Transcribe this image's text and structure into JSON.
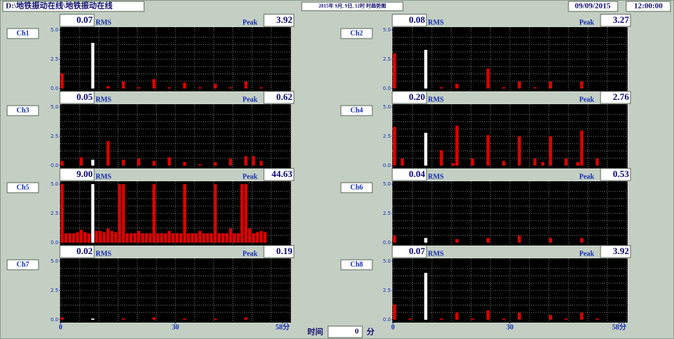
{
  "header": {
    "path": "D:\\地铁振动在线\\地铁振动在线",
    "trend": "2015年  9月, 9日, 12时  时趋势图",
    "date": "09/09/2015",
    "time": "12:00:00"
  },
  "footer": {
    "label": "时间",
    "value": "0",
    "unit": "分"
  },
  "chart_data": [
    {
      "type": "bar",
      "title": "Ch1",
      "rms": "0.07",
      "rms_label": "RMS",
      "peak": "3.92",
      "peak_label": "Peak",
      "x": [
        0,
        8,
        12,
        16,
        20,
        24,
        28,
        32,
        36,
        40,
        44,
        48,
        52
      ],
      "values": [
        1.3,
        3.9,
        0.2,
        0.6,
        0.1,
        0.8,
        0.1,
        0.5,
        0.1,
        0.4,
        0.1,
        0.6,
        0.1
      ],
      "color": "#e00000",
      "highlight_x": 8,
      "highlight_color": "#ffffff",
      "ylim": [
        0,
        5
      ],
      "yticks": [
        {
          "value": 0,
          "label": "0.0"
        },
        {
          "value": 2.5,
          "label": "2.5"
        },
        {
          "value": 5,
          "label": "5.0"
        }
      ],
      "xlim": [
        0,
        60
      ],
      "grid_x": [
        0,
        5,
        10,
        15,
        20,
        25,
        30,
        35,
        40,
        45,
        50,
        55,
        60
      ],
      "grid_y": [
        0.625,
        1.25,
        1.875,
        2.5,
        3.125,
        3.75,
        4.375
      ]
    },
    {
      "type": "bar",
      "title": "Ch2",
      "rms": "0.08",
      "rms_label": "RMS",
      "peak": "3.27",
      "peak_label": "Peak",
      "x": [
        0,
        8,
        12,
        16,
        24,
        28,
        32,
        36,
        40,
        48
      ],
      "values": [
        3.0,
        3.3,
        0.1,
        0.4,
        1.7,
        0.1,
        0.6,
        0.1,
        0.6,
        0.6
      ],
      "color": "#e00000",
      "highlight_x": 8,
      "highlight_color": "#ffffff",
      "ylim": [
        0,
        5
      ],
      "yticks": [
        {
          "value": 0,
          "label": "0.0"
        },
        {
          "value": 2.5,
          "label": "2.5"
        },
        {
          "value": 5,
          "label": "5.0"
        }
      ],
      "xlim": [
        0,
        60
      ],
      "grid_x": [
        0,
        5,
        10,
        15,
        20,
        25,
        30,
        35,
        40,
        45,
        50,
        55,
        60
      ],
      "grid_y": [
        0.625,
        1.25,
        1.875,
        2.5,
        3.125,
        3.75,
        4.375
      ]
    },
    {
      "type": "bar",
      "title": "Ch3",
      "rms": "0.05",
      "rms_label": "RMS",
      "peak": "0.62",
      "peak_label": "Peak",
      "x": [
        0,
        5,
        8,
        12,
        16,
        20,
        24,
        28,
        32,
        36,
        40,
        44,
        48,
        50,
        52
      ],
      "values": [
        0.4,
        0.7,
        0.5,
        2.1,
        0.5,
        0.6,
        0.4,
        0.7,
        0.3,
        0.1,
        0.3,
        0.6,
        0.8,
        0.8,
        0.4
      ],
      "color": "#e00000",
      "highlight_x": 8,
      "highlight_color": "#ffffff",
      "ylim": [
        0,
        5
      ],
      "yticks": [
        {
          "value": 0,
          "label": "0.0"
        },
        {
          "value": 2.5,
          "label": "2.5"
        },
        {
          "value": 5,
          "label": "5.0"
        }
      ],
      "xlim": [
        0,
        60
      ],
      "grid_x": [
        0,
        5,
        10,
        15,
        20,
        25,
        30,
        35,
        40,
        45,
        50,
        55,
        60
      ],
      "grid_y": [
        0.625,
        1.25,
        1.875,
        2.5,
        3.125,
        3.75,
        4.375
      ]
    },
    {
      "type": "bar",
      "title": "Ch4",
      "rms": "0.20",
      "rms_label": "RMS",
      "peak": "2.76",
      "peak_label": "Peak",
      "x": [
        0,
        2,
        8,
        12,
        15,
        16,
        20,
        24,
        28,
        32,
        36,
        38,
        40,
        44,
        47,
        48,
        52
      ],
      "values": [
        3.3,
        0.6,
        2.8,
        1.3,
        0.2,
        3.4,
        0.6,
        2.6,
        0.4,
        2.5,
        0.6,
        0.3,
        2.5,
        0.6,
        0.3,
        3.0,
        0.6
      ],
      "color": "#e00000",
      "highlight_x": 8,
      "highlight_color": "#ffffff",
      "ylim": [
        0,
        5
      ],
      "yticks": [
        {
          "value": 0,
          "label": "0.0"
        },
        {
          "value": 2.5,
          "label": "2.5"
        },
        {
          "value": 5,
          "label": "5.0"
        }
      ],
      "xlim": [
        0,
        60
      ],
      "grid_x": [
        0,
        5,
        10,
        15,
        20,
        25,
        30,
        35,
        40,
        45,
        50,
        55,
        60
      ],
      "grid_y": [
        0.625,
        1.25,
        1.875,
        2.5,
        3.125,
        3.75,
        4.375
      ]
    },
    {
      "type": "bar",
      "title": "Ch5",
      "rms": "9.00",
      "rms_label": "RMS",
      "peak": "44.63",
      "peak_label": "Peak",
      "x": [
        0,
        1,
        2,
        3,
        4,
        5,
        6,
        7,
        8,
        9,
        10,
        11,
        12,
        13,
        14,
        15,
        16,
        17,
        18,
        19,
        20,
        21,
        22,
        23,
        24,
        25,
        26,
        27,
        28,
        29,
        30,
        31,
        32,
        33,
        34,
        35,
        36,
        37,
        38,
        39,
        40,
        41,
        42,
        43,
        44,
        45,
        46,
        47,
        48,
        49,
        50,
        51,
        52,
        53
      ],
      "values": [
        5,
        0.8,
        0.8,
        0.8,
        0.9,
        1.1,
        0.9,
        0.8,
        5,
        1.0,
        1.0,
        0.9,
        1.2,
        1.0,
        0.9,
        5,
        5,
        0.8,
        0.8,
        0.8,
        1.0,
        0.8,
        0.8,
        0.8,
        5,
        0.8,
        0.8,
        0.8,
        1.0,
        0.8,
        0.8,
        0.8,
        5,
        0.8,
        0.8,
        0.8,
        1.0,
        0.8,
        0.8,
        0.8,
        5,
        0.8,
        0.8,
        0.8,
        1.2,
        0.8,
        0.8,
        5,
        5,
        1.2,
        0.8,
        0.9,
        1.0,
        0.9
      ],
      "color": "#e00000",
      "highlight_x": 8,
      "highlight_color": "#ffffff",
      "ylim": [
        0,
        5
      ],
      "yticks": [
        {
          "value": 0,
          "label": "0.0"
        },
        {
          "value": 2.5,
          "label": "2.5"
        },
        {
          "value": 5,
          "label": "5.0"
        }
      ],
      "xlim": [
        0,
        60
      ],
      "grid_x": [
        0,
        5,
        10,
        15,
        20,
        25,
        30,
        35,
        40,
        45,
        50,
        55,
        60
      ],
      "grid_y": [
        0.625,
        1.25,
        1.875,
        2.5,
        3.125,
        3.75,
        4.375
      ]
    },
    {
      "type": "bar",
      "title": "Ch6",
      "rms": "0.04",
      "rms_label": "RMS",
      "peak": "0.53",
      "peak_label": "Peak",
      "x": [
        0,
        8,
        16,
        24,
        32,
        40,
        48
      ],
      "values": [
        0.6,
        0.4,
        0.3,
        0.4,
        0.6,
        0.4,
        0.4
      ],
      "color": "#e00000",
      "highlight_x": 8,
      "highlight_color": "#ffffff",
      "ylim": [
        0,
        5
      ],
      "yticks": [
        {
          "value": 0,
          "label": "0.0"
        },
        {
          "value": 2.5,
          "label": "2.5"
        },
        {
          "value": 5,
          "label": "5.0"
        }
      ],
      "xlim": [
        0,
        60
      ],
      "grid_x": [
        0,
        5,
        10,
        15,
        20,
        25,
        30,
        35,
        40,
        45,
        50,
        55,
        60
      ],
      "grid_y": [
        0.625,
        1.25,
        1.875,
        2.5,
        3.125,
        3.75,
        4.375
      ]
    },
    {
      "type": "bar",
      "title": "Ch7",
      "rms": "0.02",
      "rms_label": "RMS",
      "peak": "0.19",
      "peak_label": "Peak",
      "x": [
        0,
        8,
        16,
        24,
        32,
        40,
        48
      ],
      "values": [
        0.2,
        0.1,
        0.1,
        0.2,
        0.1,
        0.1,
        0.2
      ],
      "color": "#e00000",
      "highlight_x": 8,
      "highlight_color": "#ffffff",
      "ylim": [
        0,
        5
      ],
      "yticks": [
        {
          "value": 0,
          "label": "0.0"
        },
        {
          "value": 2.5,
          "label": "2.5"
        },
        {
          "value": 5,
          "label": "5.0"
        }
      ],
      "xlim": [
        0,
        60
      ],
      "xticks": [
        0,
        30,
        {
          "value": 58,
          "label": "58分"
        }
      ],
      "grid_x": [
        0,
        5,
        10,
        15,
        20,
        25,
        30,
        35,
        40,
        45,
        50,
        55,
        60
      ],
      "grid_y": [
        0.625,
        1.25,
        1.875,
        2.5,
        3.125,
        3.75,
        4.375
      ]
    },
    {
      "type": "bar",
      "title": "Ch8",
      "rms": "0.07",
      "rms_label": "RMS",
      "peak": "3.92",
      "peak_label": "Peak",
      "x": [
        0,
        4,
        8,
        12,
        16,
        20,
        24,
        28,
        32,
        40,
        44,
        48,
        52
      ],
      "values": [
        1.3,
        0.1,
        4.0,
        0.1,
        0.6,
        0.1,
        0.8,
        0.1,
        0.6,
        0.4,
        0.1,
        0.6,
        0.1
      ],
      "color": "#e00000",
      "highlight_x": 8,
      "highlight_color": "#ffffff",
      "ylim": [
        0,
        5
      ],
      "yticks": [
        {
          "value": 0,
          "label": "0.0"
        },
        {
          "value": 2.5,
          "label": "2.5"
        },
        {
          "value": 5,
          "label": "5.0"
        }
      ],
      "xlim": [
        0,
        60
      ],
      "xticks": [
        0,
        30,
        {
          "value": 58,
          "label": "58分"
        }
      ],
      "grid_x": [
        0,
        5,
        10,
        15,
        20,
        25,
        30,
        35,
        40,
        45,
        50,
        55,
        60
      ],
      "grid_y": [
        0.625,
        1.25,
        1.875,
        2.5,
        3.125,
        3.75,
        4.375
      ]
    }
  ]
}
